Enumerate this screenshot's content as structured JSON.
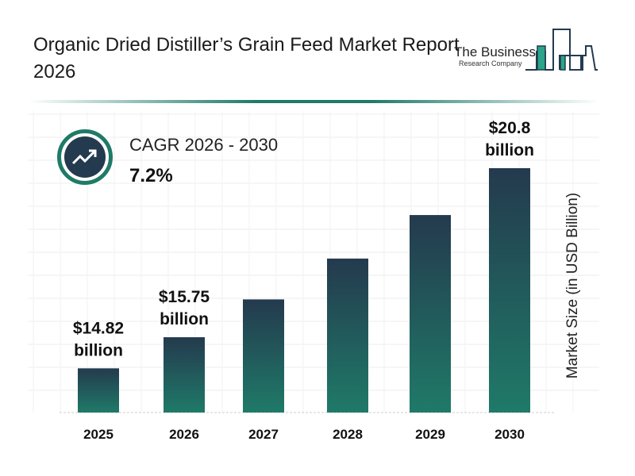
{
  "title": "Organic Dried Distiller’s Grain Feed Market Report 2026",
  "logo": {
    "line1": "The Business",
    "line2": "Research Company"
  },
  "cagr": {
    "label": "CAGR 2026 - 2030",
    "value": "7.2%",
    "icon": "trend-up-icon"
  },
  "colors": {
    "bar_top": "#243a4e",
    "bar_bottom": "#1f7a68",
    "accent": "#1f7a68"
  },
  "chart_data": {
    "type": "bar",
    "categories": [
      "2025",
      "2026",
      "2027",
      "2028",
      "2029",
      "2030"
    ],
    "values": [
      14.82,
      15.75,
      16.88,
      18.1,
      19.4,
      20.8
    ],
    "data_labels": [
      [
        "$14.82",
        "billion"
      ],
      [
        "$15.75",
        "billion"
      ],
      null,
      null,
      null,
      [
        "$20.8",
        "billion"
      ]
    ],
    "ylabel": "Market Size (in USD Billion)",
    "xlabel": "",
    "grid": true
  }
}
